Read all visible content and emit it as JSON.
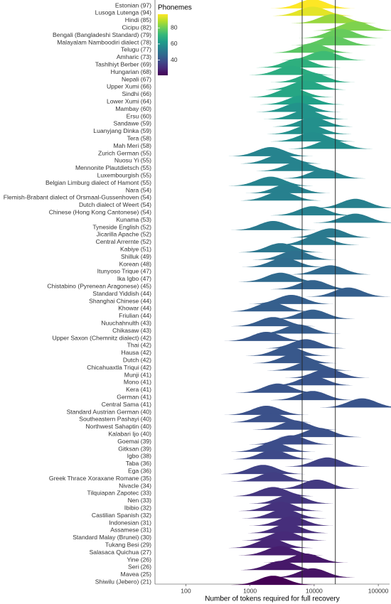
{
  "chart_data": {
    "type": "ridgeline",
    "x_label": "Number of tokens required for full recovery",
    "log_x": true,
    "xlim": [
      33,
      150000
    ],
    "xticks": [
      100,
      1000,
      10000,
      100000
    ],
    "reference_lines": [
      6500,
      21400
    ],
    "legend_title": "Phonemes",
    "color_lim": [
      21,
      97
    ],
    "color_ticks": [
      40,
      60,
      80
    ],
    "colormap": [
      "#440154",
      "#482878",
      "#3e4989",
      "#31688e",
      "#26828e",
      "#1f9e89",
      "#35b779",
      "#6ece58",
      "#b5de2b",
      "#fde725"
    ],
    "categories": [
      "Estonian (97)",
      "Lusoga Lutenga (94)",
      "Hindi (85)",
      "Cicipu (82)",
      "Bengali (Bangladeshi Standard) (79)",
      "Malayalam Namboodiri dialect (78)",
      "Telugu (77)",
      "Amharic (73)",
      "Tashlhiyt Berber (69)",
      "Hungarian (68)",
      "Nepali (67)",
      "Upper Xumi (66)",
      "Sindhi (66)",
      "Lower Xumi (64)",
      "Mambay (60)",
      "Ersu (60)",
      "Sandawe (59)",
      "Luanyjang Dinka (59)",
      "Tera (58)",
      "Mah Meri (58)",
      "Zurich German (55)",
      "Nuosu Yi (55)",
      "Mennonite Plautdietsch (55)",
      "Luxembourgish (55)",
      "Belgian Limburg dialect of Hamont (55)",
      "Nara (54)",
      "Flemish-Brabant dialect of Orsmaal-Gussenhoven (54)",
      "Dutch dialect of Weert (54)",
      "Chinese (Hong Kong Cantonese) (54)",
      "Kunama (53)",
      "Tyneside English (52)",
      "Jicarilla Apache (52)",
      "Central Arrernte (52)",
      "Kabiye (51)",
      "Shilluk (49)",
      "Korean (48)",
      "Itunyoso Trique (47)",
      "Ika Igbo (47)",
      "Chistabino (Pyrenean Aragonese) (45)",
      "Standard Yiddish (44)",
      "Shanghai Chinese (44)",
      "Khowar (44)",
      "Friulian (44)",
      "Nuuchahnulth (43)",
      "Chikasaw (43)",
      "Upper Saxon (Chemnitz dialect) (42)",
      "Thai (42)",
      "Hausa (42)",
      "Dutch (42)",
      "Chicahuaxtla Triqui (42)",
      "Munji (41)",
      "Mono (41)",
      "Kera (41)",
      "German (41)",
      "Central Sama (41)",
      "Standard Austrian German (40)",
      "Southeastern Pashayi (40)",
      "Northwest Sahaptin (40)",
      "Kalabari Ijo (40)",
      "Goemai (39)",
      "Gitksan (39)",
      "Igbo (38)",
      "Taba (36)",
      "Ega (36)",
      "Greek Thrace Xoraxane Romane (35)",
      "Nivacle (34)",
      "Tilquiapan Zapotec (33)",
      "Nen (33)",
      "Ibibio (32)",
      "Castilian Spanish (32)",
      "Indonesian (31)",
      "Assamese (31)",
      "Standard Malay (Brunei) (30)",
      "Tukang Besi (29)",
      "Salasaca Quichua (27)",
      "Yine (26)",
      "Seri (26)",
      "Mavea (25)",
      "Shiwilu (Jebero) (21)"
    ],
    "phonemes": [
      97,
      94,
      85,
      82,
      79,
      78,
      77,
      73,
      69,
      68,
      67,
      66,
      66,
      64,
      60,
      60,
      59,
      59,
      58,
      58,
      55,
      55,
      55,
      55,
      55,
      54,
      54,
      54,
      54,
      53,
      52,
      52,
      52,
      51,
      49,
      48,
      47,
      47,
      45,
      44,
      44,
      44,
      44,
      43,
      43,
      42,
      42,
      42,
      42,
      42,
      41,
      41,
      41,
      41,
      41,
      40,
      40,
      40,
      40,
      39,
      39,
      38,
      36,
      36,
      35,
      34,
      33,
      33,
      32,
      32,
      31,
      31,
      30,
      29,
      27,
      26,
      26,
      25,
      21
    ],
    "values": [
      9500,
      9500,
      20000,
      44000,
      26000,
      20000,
      9500,
      14000,
      5700,
      4400,
      9500,
      7400,
      4400,
      6500,
      5700,
      7400,
      9500,
      8400,
      9500,
      18000,
      2100,
      3000,
      5700,
      14000,
      2100,
      3900,
      3000,
      44000,
      9500,
      44000,
      2300,
      18000,
      11000,
      3000,
      5000,
      3400,
      18000,
      3000,
      9500,
      34000,
      4400,
      2100,
      9500,
      2300,
      5700,
      1800,
      7400,
      3900,
      5000,
      8400,
      16000,
      9500,
      2700,
      9500,
      56000,
      1800,
      2100,
      5000,
      12000,
      4400,
      2300,
      2300,
      16000,
      1600,
      2300,
      11000,
      2300,
      4400,
      3000,
      3400,
      4400,
      3900,
      3400,
      2100,
      3000,
      7400,
      3000,
      9500,
      2300
    ]
  }
}
